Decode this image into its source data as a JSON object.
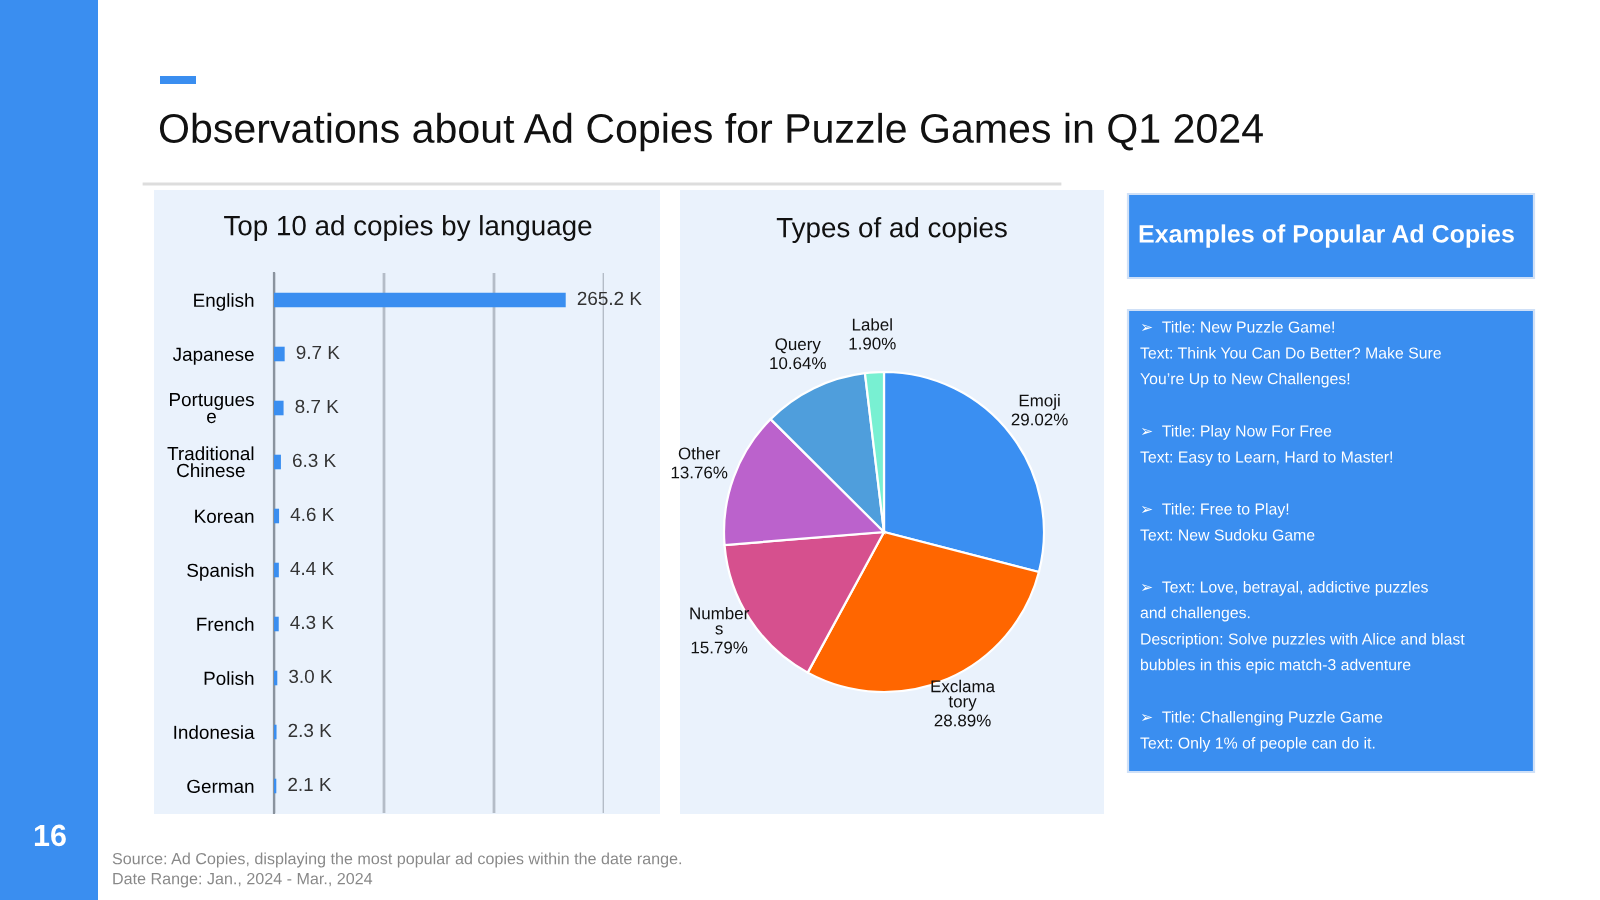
{
  "chart_data": [
    {
      "type": "other",
      "title": "Observations about Ad Copies for Puzzle Games in Q1 2024",
      "annotations": [
        "Source: Ad Copies, displaying the most popular ad copies within the date range.",
        "Date Range: Jan., 2024 - Mar., 2024",
        "16"
      ]
    },
    {
      "type": "bar",
      "orientation": "horizontal",
      "title": "Top 10 ad copies by language",
      "categories": [
        "English",
        "Japanese",
        "Portugues\ne",
        "Traditional\nChinese",
        "Korean",
        "Spanish",
        "French",
        "Polish",
        "Indonesia",
        "German"
      ],
      "values": [
        265.2,
        9.7,
        8.7,
        6.3,
        4.6,
        4.4,
        4.3,
        3.0,
        2.3,
        2.1
      ],
      "value_labels": [
        "265.2 K",
        "9.7 K",
        "8.7 K",
        "6.3 K",
        "4.6 K",
        "4.4 K",
        "4.3 K",
        "3.0 K",
        "2.3 K",
        "2.1 K"
      ],
      "color": "#3a8ef0",
      "xlim": [
        0,
        300
      ],
      "xticks": [
        {
          "value": 0,
          "label": null
        },
        {
          "value": 100,
          "label": null
        },
        {
          "value": 200,
          "label": null
        },
        {
          "value": 300,
          "label": null
        }
      ],
      "grid": "x",
      "tick_labels": "y"
    },
    {
      "type": "pie",
      "title": "Types of ad copies",
      "categories": [
        "Emoji",
        "Exclama\ntory",
        "Number\ns",
        "Other",
        "Query",
        "Label"
      ],
      "values": [
        29.02,
        28.89,
        15.79,
        13.76,
        10.64,
        1.9
      ],
      "value_labels": [
        "29.02%",
        "28.89%",
        "15.79%",
        "13.76%",
        "10.64%",
        "1.90%"
      ],
      "colors": [
        "#3a8ff2",
        "#ff6600",
        "#d6508e",
        "#bb62cc",
        "#4f9edc",
        "#78f0d2"
      ]
    },
    {
      "type": "other",
      "title": "Examples of Popular Ad Copies",
      "annotations": [
        "➢  Title: New Puzzle Game!",
        "Text: Think You Can Do Better? Make Sure\nYou’re Up to New Challenges!",
        "➢  Title: Play Now For Free",
        "Text: Easy to Learn, Hard to Master!",
        "➢  Title: Free to Play!",
        "Text: New Sudoku Game",
        "➢  Text: Love, betrayal, addictive puzzles\nand challenges.",
        "Description: Solve puzzles with Alice and blast\nbubbles in this epic match-3 adventure",
        "➢  Title: Challenging Puzzle Game",
        "Text: Only 1% of people can do it."
      ]
    }
  ]
}
